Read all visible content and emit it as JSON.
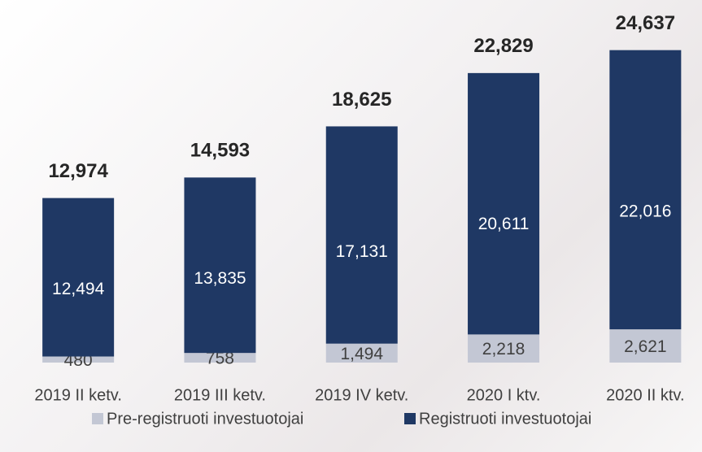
{
  "chart_data": {
    "type": "stacked_bar",
    "categories": [
      "2019 II ketv.",
      "2019 III ketv.",
      "2019 IV ketv.",
      "2020 I ktv.",
      "2020 II ktv."
    ],
    "series": [
      {
        "name": "Pre-registruoti investuotojai",
        "color": "#c3c7d4",
        "values": [
          480,
          758,
          1494,
          2218,
          2621
        ],
        "value_labels": [
          "480",
          "758",
          "1,494",
          "2,218",
          "2,621"
        ]
      },
      {
        "name": "Registruoti investuotojai",
        "color": "#1f3864",
        "values": [
          12494,
          13835,
          17131,
          20611,
          22016
        ],
        "value_labels": [
          "12,494",
          "13,835",
          "17,131",
          "20,611",
          "22,016"
        ]
      }
    ],
    "totals": [
      12974,
      14593,
      18625,
      22829,
      24637
    ],
    "total_labels": [
      "12,974",
      "14,593",
      "18,625",
      "22,829",
      "24,637"
    ],
    "ylim": [
      0,
      25000
    ],
    "legend": "bottom"
  }
}
